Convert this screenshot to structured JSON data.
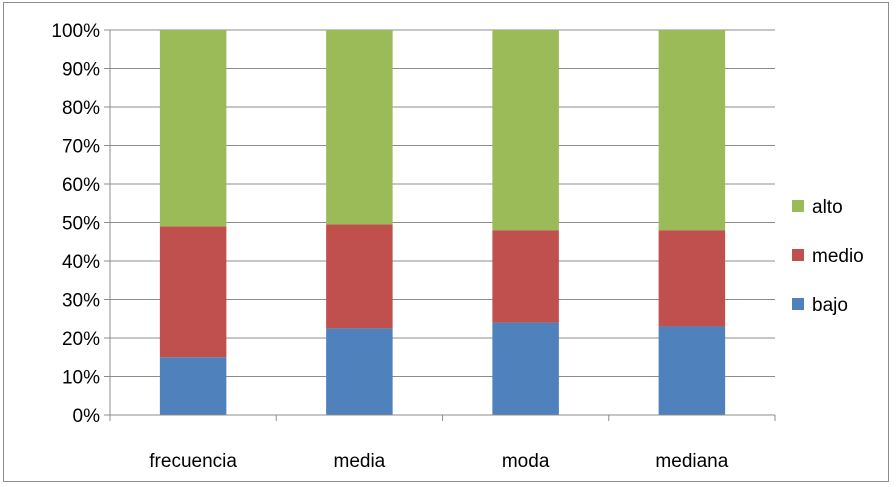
{
  "chart_data": {
    "type": "bar",
    "stacked": true,
    "percent_stacked": true,
    "categories": [
      "frecuencia",
      "media",
      "moda",
      "mediana"
    ],
    "series": [
      {
        "name": "bajo",
        "color": "#4F81BD",
        "values": [
          15,
          22.5,
          24,
          23
        ]
      },
      {
        "name": "medio",
        "color": "#C0504D",
        "values": [
          34,
          27,
          24,
          25
        ]
      },
      {
        "name": "alto",
        "color": "#9BBB59",
        "values": [
          51,
          50.5,
          52,
          52
        ]
      }
    ],
    "yticks": [
      "0%",
      "10%",
      "20%",
      "30%",
      "40%",
      "50%",
      "60%",
      "70%",
      "80%",
      "90%",
      "100%"
    ],
    "ylim": [
      0,
      100
    ],
    "grid": true,
    "legend_position": "right",
    "legend_order": [
      "alto",
      "medio",
      "bajo"
    ],
    "title": "",
    "xlabel": "",
    "ylabel": ""
  }
}
